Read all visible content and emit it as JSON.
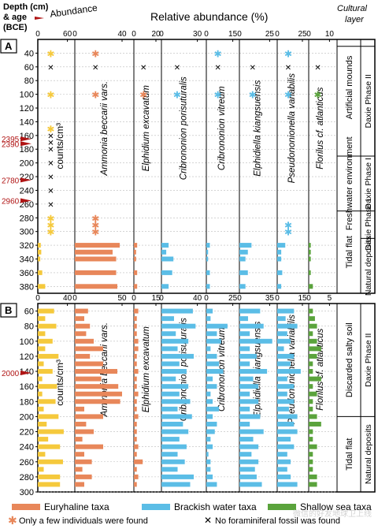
{
  "header": {
    "depth_label_1": "Depth (cm)",
    "depth_label_2": "& age",
    "depth_label_3": "(BCE)",
    "abundance": "Abundance",
    "relative": "Relative abundance (%)",
    "cultural": "Cultural",
    "cultural_2": "layer"
  },
  "colors": {
    "euryhaline": "#e8875a",
    "brackish": "#5bbde6",
    "shallow": "#5aa33c",
    "abundance": "#f5c93c",
    "age_marker": "#b01515"
  },
  "legend": {
    "euryhaline": "Euryhaline taxa",
    "brackish": "Brackish water taxa",
    "shallow": "Shallow sea taxa",
    "few": "Only a few individuals were found",
    "none": "No foraminiferal fossil was found"
  },
  "watermark": "微信的好友地球卫上线",
  "chart_data": [
    {
      "type": "bar",
      "panel": "A",
      "ylim": [
        20,
        390
      ],
      "ytick_labels": [
        "40",
        "60",
        "80",
        "100",
        "120",
        "140",
        "160",
        "180",
        "200",
        "220",
        "240",
        "260",
        "280",
        "300",
        "320",
        "340",
        "360",
        "380"
      ],
      "ytick_values": [
        40,
        60,
        80,
        100,
        120,
        140,
        160,
        180,
        200,
        220,
        240,
        260,
        280,
        300,
        320,
        340,
        360,
        380
      ],
      "ages": [
        {
          "label": "2395",
          "depth": 165
        },
        {
          "label": "2390",
          "depth": 172
        },
        {
          "label": "2780",
          "depth": 225
        },
        {
          "label": "2960",
          "depth": 255
        }
      ],
      "abundance_label": "counts/cm³",
      "columns": [
        {
          "name": "Abundance",
          "ticks": [
            "0",
            "60"
          ],
          "max": 60,
          "color": "abundance"
        },
        {
          "name": "Ammonia beccarii vars.",
          "ticks": [
            "0",
            "40"
          ],
          "max": 40,
          "color": "euryhaline"
        },
        {
          "name": "Elphidium excavatum",
          "ticks": [
            "0",
            "20"
          ],
          "max": 20,
          "color": "euryhaline"
        },
        {
          "name": "Cribrononion porisuturalis",
          "ticks": [
            "0",
            "30"
          ],
          "max": 30,
          "color": "brackish"
        },
        {
          "name": "Cribrononion vitreum",
          "ticks": [
            "0",
            "15"
          ],
          "max": 15,
          "color": "brackish"
        },
        {
          "name": "Elphidiella kiangsuensis",
          "ticks": [
            "0",
            "25"
          ],
          "max": 25,
          "color": "brackish"
        },
        {
          "name": "Pseudononionella variabilis",
          "ticks": [
            "0",
            "25"
          ],
          "max": 25,
          "color": "brackish"
        },
        {
          "name": "Florilus cf. atlanticus",
          "ticks": [
            "0",
            "10"
          ],
          "max": 10,
          "color": "shallow"
        }
      ],
      "depths": [
        40,
        60,
        100,
        150,
        160,
        170,
        180,
        200,
        220,
        240,
        260,
        280,
        290,
        300,
        320,
        330,
        340,
        360,
        380
      ],
      "values": [
        [
          "few",
          "none",
          "few",
          "few",
          "none",
          "none",
          "none",
          "none",
          "none",
          "none",
          "none",
          "few",
          "few",
          "few",
          6,
          7,
          5,
          9,
          15
        ],
        [
          "few",
          "none",
          "few",
          null,
          null,
          null,
          null,
          null,
          null,
          null,
          null,
          "few",
          "few",
          "few",
          38,
          32,
          35,
          35,
          36
        ],
        [
          null,
          "none",
          "few",
          null,
          null,
          null,
          null,
          null,
          null,
          null,
          null,
          null,
          null,
          null,
          3,
          2,
          2,
          3,
          3
        ],
        [
          null,
          "none",
          "few",
          null,
          null,
          null,
          null,
          null,
          null,
          null,
          null,
          null,
          null,
          null,
          6,
          4,
          10,
          9,
          6
        ],
        [
          "few",
          "none",
          "few",
          null,
          null,
          null,
          null,
          null,
          null,
          null,
          null,
          null,
          null,
          null,
          2,
          1,
          1,
          2,
          2
        ],
        [
          null,
          "none",
          "few",
          null,
          null,
          null,
          null,
          null,
          null,
          null,
          null,
          null,
          null,
          null,
          10,
          7,
          5,
          7,
          5
        ],
        [
          "few",
          "none",
          "few",
          null,
          null,
          null,
          null,
          null,
          null,
          null,
          null,
          null,
          "few",
          "few",
          8,
          4,
          4,
          5,
          4
        ],
        [
          null,
          "none",
          "few",
          null,
          null,
          null,
          null,
          null,
          null,
          null,
          null,
          null,
          null,
          null,
          1,
          1,
          1,
          1,
          2
        ]
      ],
      "zones": [
        {
          "label": "Tidal flat",
          "from": 270,
          "to": 390
        },
        {
          "label": "Freshwater environment",
          "from": 190,
          "to": 270
        },
        {
          "label": "Artificial mounds",
          "from": 30,
          "to": 150
        }
      ],
      "layers": [
        {
          "label": "Natural deposits",
          "from": 310,
          "to": 390
        },
        {
          "label": "Daxie Phase I",
          "from": 270,
          "to": 310
        },
        {
          "label": "Daxie Phase I",
          "from": 190,
          "to": 270
        },
        {
          "label": "Daxie Phase II",
          "from": 30,
          "to": 190
        }
      ]
    },
    {
      "type": "bar",
      "panel": "B",
      "ylim": [
        50,
        300
      ],
      "ytick_labels": [
        "60",
        "80",
        "100",
        "120",
        "140",
        "160",
        "180",
        "200",
        "220",
        "240",
        "260",
        "280",
        "300"
      ],
      "ytick_values": [
        60,
        80,
        100,
        120,
        140,
        160,
        180,
        200,
        220,
        240,
        260,
        280,
        300
      ],
      "ages": [
        {
          "label": "2000",
          "depth": 142
        }
      ],
      "abundance_label": "counts/cm³",
      "columns": [
        {
          "name": "Abundance",
          "ticks": [
            "0",
            "40"
          ],
          "max": 40,
          "color": "abundance"
        },
        {
          "name": "Ammonia beccarii vars.",
          "ticks": [
            "0",
            "50"
          ],
          "max": 50,
          "color": "euryhaline"
        },
        {
          "name": "Elphidium excavatum",
          "ticks": [
            "0",
            "15"
          ],
          "max": 15,
          "color": "euryhaline"
        },
        {
          "name": "Cribrononion porisuturalis",
          "ticks": [
            "0",
            "40"
          ],
          "max": 40,
          "color": "brackish"
        },
        {
          "name": "Cribrononion vitreum",
          "ticks": [
            "0",
            "25"
          ],
          "max": 25,
          "color": "brackish"
        },
        {
          "name": "Elphidiella kiangsuensis",
          "ticks": [
            "0",
            "35"
          ],
          "max": 35,
          "color": "brackish"
        },
        {
          "name": "Pseudononionella variabilis",
          "ticks": [
            "0",
            "15"
          ],
          "max": 15,
          "color": "brackish"
        },
        {
          "name": "Florilus cf. atlanticus",
          "ticks": [
            "0",
            "5"
          ],
          "max": 5,
          "color": "shallow"
        }
      ],
      "depths": [
        60,
        70,
        80,
        90,
        100,
        110,
        120,
        130,
        140,
        150,
        160,
        170,
        180,
        190,
        200,
        210,
        220,
        230,
        240,
        250,
        260,
        270,
        280,
        290
      ],
      "values": [
        [
          22,
          10,
          25,
          10,
          20,
          10,
          28,
          8,
          20,
          6,
          26,
          6,
          24,
          8,
          28,
          12,
          35,
          14,
          30,
          10,
          34,
          8,
          30,
          30
        ],
        [
          14,
          10,
          16,
          12,
          20,
          30,
          16,
          30,
          45,
          28,
          46,
          50,
          48,
          10,
          30,
          12,
          20,
          8,
          30,
          10,
          18,
          8,
          18,
          10
        ],
        [
          3,
          2,
          2,
          2,
          3,
          3,
          2,
          2,
          3,
          2,
          2,
          3,
          2,
          2,
          3,
          2,
          2,
          2,
          3,
          2,
          6,
          2,
          3,
          2
        ],
        [
          35,
          14,
          38,
          16,
          30,
          18,
          36,
          20,
          28,
          16,
          30,
          20,
          32,
          18,
          34,
          24,
          30,
          20,
          28,
          18,
          26,
          18,
          36,
          32
        ],
        [
          6,
          4,
          20,
          10,
          14,
          4,
          10,
          12,
          16,
          6,
          10,
          4,
          6,
          12,
          6,
          10,
          8,
          4,
          6,
          2,
          4,
          4,
          6,
          10
        ],
        [
          24,
          10,
          28,
          12,
          38,
          12,
          20,
          12,
          32,
          16,
          22,
          12,
          22,
          12,
          24,
          12,
          28,
          16,
          22,
          14,
          22,
          18,
          20,
          26
        ],
        [
          10,
          5,
          12,
          6,
          8,
          4,
          10,
          8,
          14,
          6,
          10,
          6,
          10,
          7,
          12,
          10,
          12,
          8,
          10,
          6,
          8,
          6,
          8,
          12
        ],
        [
          1,
          1.5,
          2,
          1,
          2,
          3,
          2,
          1,
          1,
          3,
          1,
          2,
          1,
          1,
          2,
          3,
          1,
          1,
          2,
          1,
          1,
          1,
          2,
          2
        ]
      ],
      "zones": [
        {
          "label": "Tidal flat",
          "from": 200,
          "to": 300
        },
        {
          "label": "Discarded salty soil",
          "from": 50,
          "to": 200
        }
      ],
      "layers": [
        {
          "label": "Natural deposits",
          "from": 200,
          "to": 300
        },
        {
          "label": "Daxie Phase II",
          "from": 50,
          "to": 200
        }
      ]
    }
  ]
}
